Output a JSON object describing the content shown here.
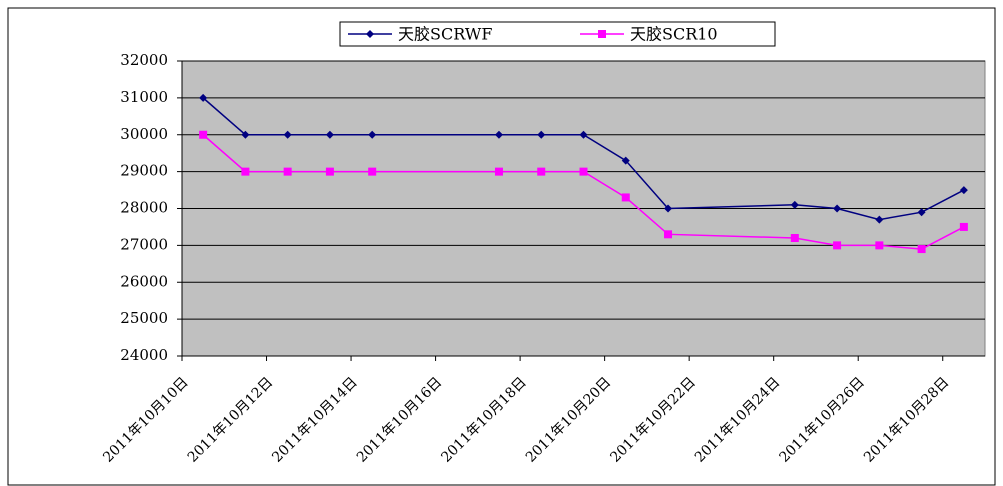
{
  "chart_data": {
    "type": "line",
    "x": [
      "2011-10-10",
      "2011-10-11",
      "2011-10-12",
      "2011-10-13",
      "2011-10-14",
      "2011-10-17",
      "2011-10-18",
      "2011-10-19",
      "2011-10-20",
      "2011-10-21",
      "2011-10-24",
      "2011-10-25",
      "2011-10-26",
      "2011-10-27",
      "2011-10-28"
    ],
    "series": [
      {
        "name": "天胶SCRWF",
        "color": "#000080",
        "marker": "diamond",
        "values": [
          31000,
          30000,
          30000,
          30000,
          30000,
          30000,
          30000,
          30000,
          29300,
          28000,
          28100,
          28000,
          27700,
          27900,
          28500
        ]
      },
      {
        "name": "天胶SCR10",
        "color": "#ff00ff",
        "marker": "square",
        "values": [
          30000,
          29000,
          29000,
          29000,
          29000,
          29000,
          29000,
          29000,
          28300,
          27300,
          27200,
          27000,
          27000,
          26900,
          27500
        ]
      }
    ],
    "xlim": [
      "2011-10-10",
      "2011-10-29"
    ],
    "xticks": [
      {
        "value": "2011-10-10",
        "label": "2011年10月10日"
      },
      {
        "value": "2011-10-12",
        "label": "2011年10月12日"
      },
      {
        "value": "2011-10-14",
        "label": "2011年10月14日"
      },
      {
        "value": "2011-10-16",
        "label": "2011年10月16日"
      },
      {
        "value": "2011-10-18",
        "label": "2011年10月18日"
      },
      {
        "value": "2011-10-20",
        "label": "2011年10月20日"
      },
      {
        "value": "2011-10-22",
        "label": "2011年10月22日"
      },
      {
        "value": "2011-10-24",
        "label": "2011年10月24日"
      },
      {
        "value": "2011-10-26",
        "label": "2011年10月26日"
      },
      {
        "value": "2011-10-28",
        "label": "2011年10月28日"
      }
    ],
    "ylim": [
      24000,
      32000
    ],
    "yticks": [
      24000,
      25000,
      26000,
      27000,
      28000,
      29000,
      30000,
      31000,
      32000
    ],
    "grid": true,
    "legend": "top",
    "plot_background": "#c0c0c0"
  }
}
